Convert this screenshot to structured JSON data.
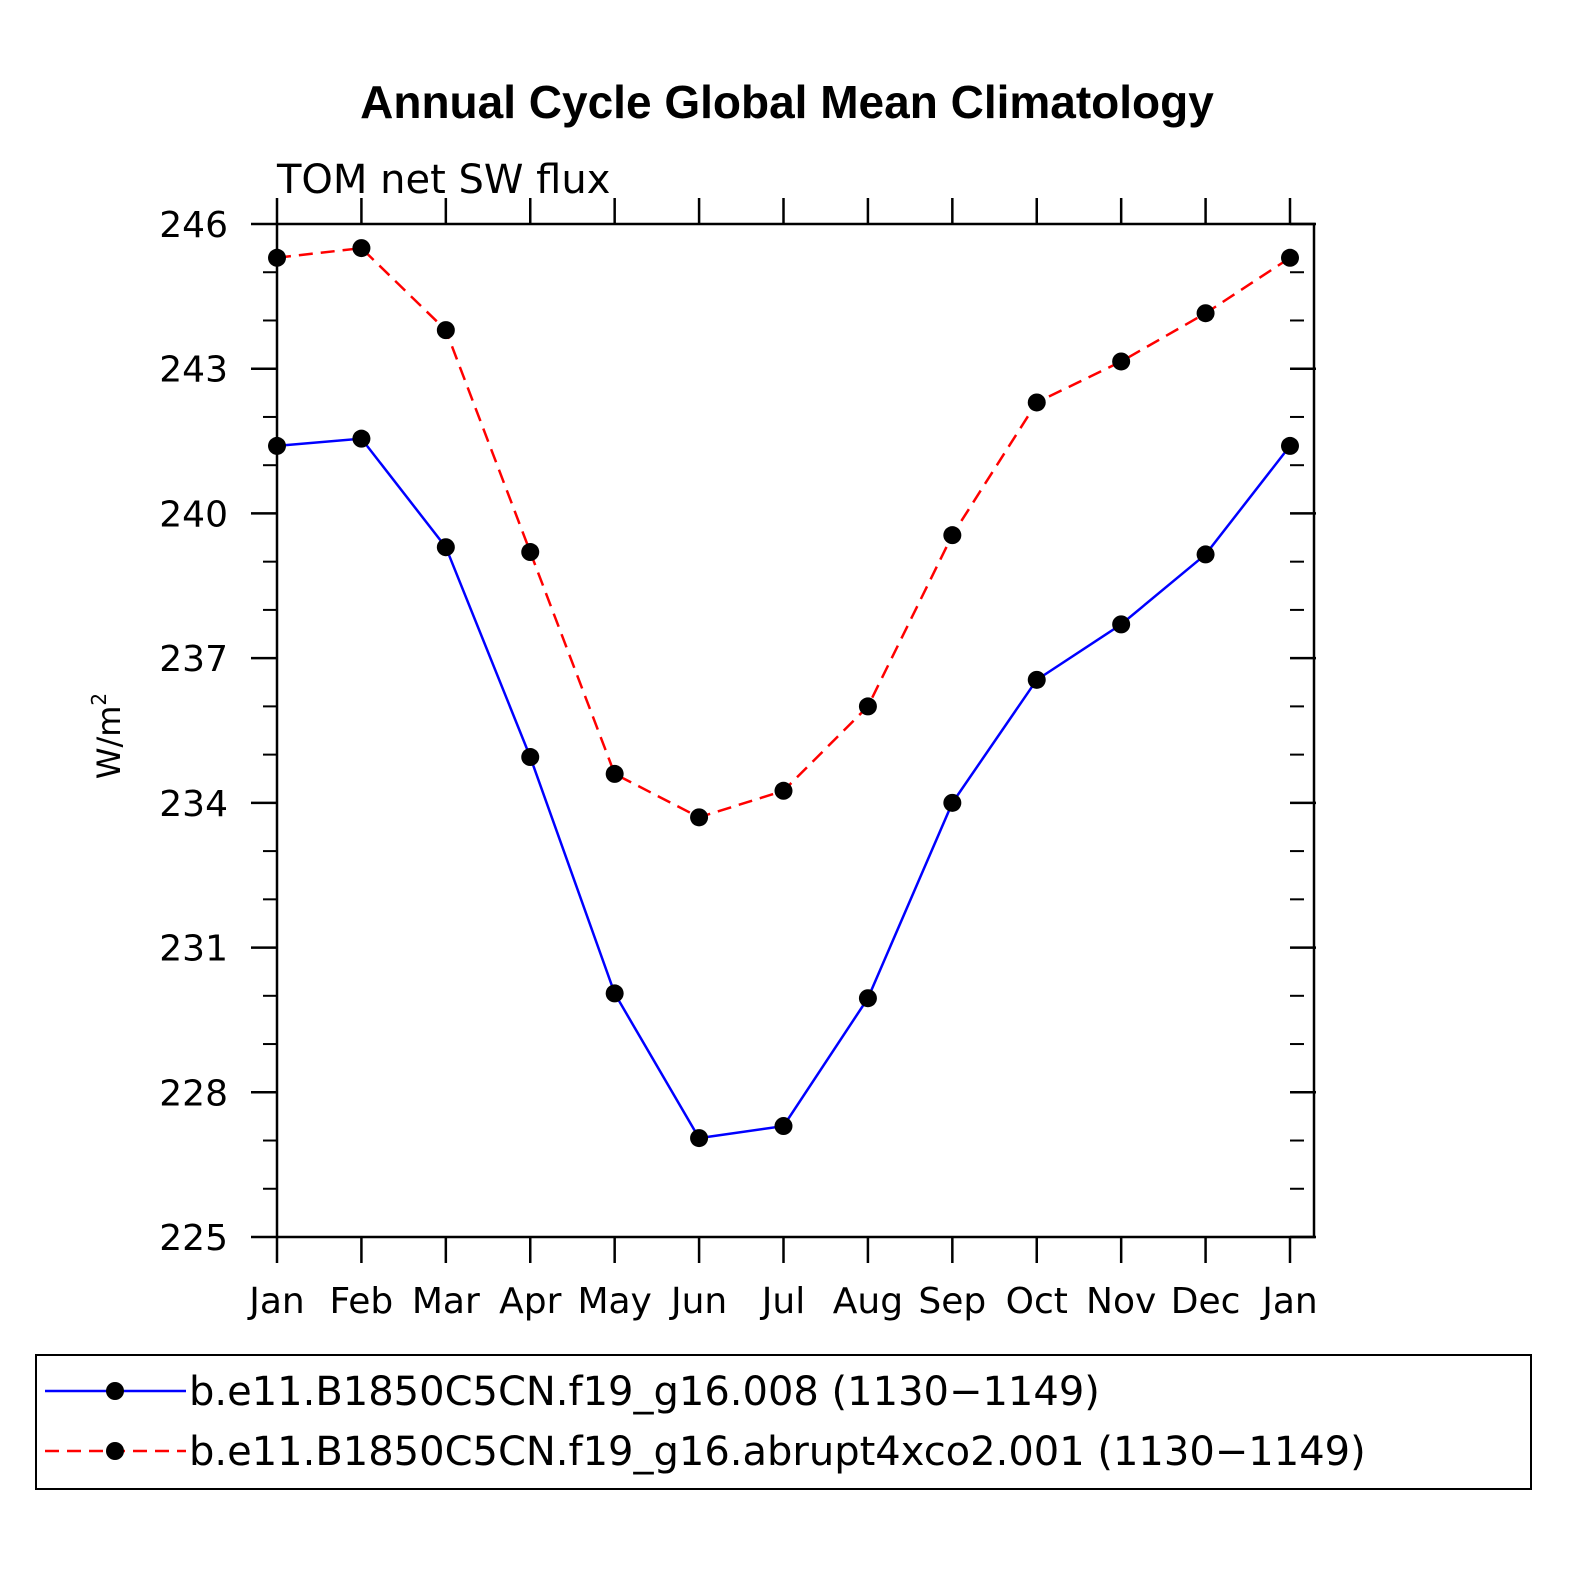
{
  "chart_data": {
    "type": "line",
    "title": "Annual Cycle Global Mean Climatology",
    "subtitle": "TOM net SW flux",
    "xlabel": "",
    "ylabel": "W/m",
    "ylabel_superscript": "2",
    "categories": [
      "Jan",
      "Feb",
      "Mar",
      "Apr",
      "May",
      "Jun",
      "Jul",
      "Aug",
      "Sep",
      "Oct",
      "Nov",
      "Dec",
      "Jan"
    ],
    "ylim": [
      225,
      246
    ],
    "yticks": [
      225,
      228,
      231,
      234,
      237,
      240,
      243,
      246
    ],
    "series": [
      {
        "name": "b.e11.B1850C5CN.f19_g16.008 (1130−1149)",
        "color": "#0000ff",
        "style": "solid",
        "values": [
          241.4,
          241.55,
          239.3,
          234.95,
          230.05,
          227.05,
          227.3,
          229.95,
          234.0,
          236.55,
          237.7,
          239.15,
          241.4
        ]
      },
      {
        "name": "b.e11.B1850C5CN.f19_g16.abrupt4xco2.001 (1130−1149)",
        "color": "#ff0000",
        "style": "dashed",
        "values": [
          245.3,
          245.5,
          243.8,
          239.2,
          234.6,
          233.7,
          234.25,
          236.0,
          239.55,
          242.3,
          243.15,
          244.15,
          245.3
        ]
      }
    ]
  }
}
